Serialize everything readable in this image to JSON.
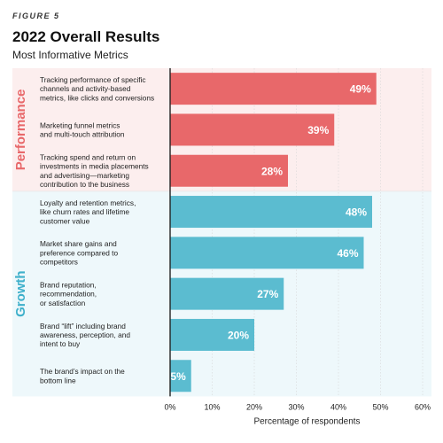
{
  "figure_label": "FIGURE 5",
  "title": "2022 Overall Results",
  "subtitle": "Most Informative Metrics",
  "chart_data": {
    "type": "bar",
    "orientation": "horizontal",
    "xlabel": "Percentage of respondents",
    "xlim": [
      0,
      60
    ],
    "ticks": [
      "0%",
      "10%",
      "20%",
      "30%",
      "40%",
      "50%",
      "60%"
    ],
    "groups": [
      {
        "name": "Performance",
        "color": "#E8686A",
        "band_color": "#FCEEEE",
        "label_color": "#E8686A",
        "items": [
          {
            "lines": [
              "Tracking performance of specific",
              "channels and activity-based",
              "metrics, like clicks and conversions"
            ],
            "value": 49,
            "label": "49%"
          },
          {
            "lines": [
              "Marketing funnel metrics",
              "and multi-touch attribution"
            ],
            "value": 39,
            "label": "39%"
          },
          {
            "lines": [
              "Tracking spend and return on",
              "investments in media placements",
              "and advertising—marketing",
              "contribution to the business"
            ],
            "value": 28,
            "label": "28%"
          }
        ]
      },
      {
        "name": "Growth",
        "color": "#5BBCD0",
        "band_color": "#EEF8FB",
        "label_color": "#3FB0CB",
        "items": [
          {
            "lines": [
              "Loyalty and retention metrics,",
              "like churn rates and lifetime",
              "customer value"
            ],
            "value": 48,
            "label": "48%"
          },
          {
            "lines": [
              "Market share gains and",
              "preference compared to",
              "competitors"
            ],
            "value": 46,
            "label": "46%"
          },
          {
            "lines": [
              "Brand reputation,",
              "recommendation,",
              "or satisfaction"
            ],
            "value": 27,
            "label": "27%"
          },
          {
            "lines": [
              "Brand “lift” including brand",
              "awareness, perception, and",
              "intent to buy"
            ],
            "value": 20,
            "label": "20%"
          },
          {
            "lines": [
              "The brand’s impact on the",
              "bottom line"
            ],
            "value": 5,
            "label": "5%"
          }
        ]
      }
    ]
  }
}
